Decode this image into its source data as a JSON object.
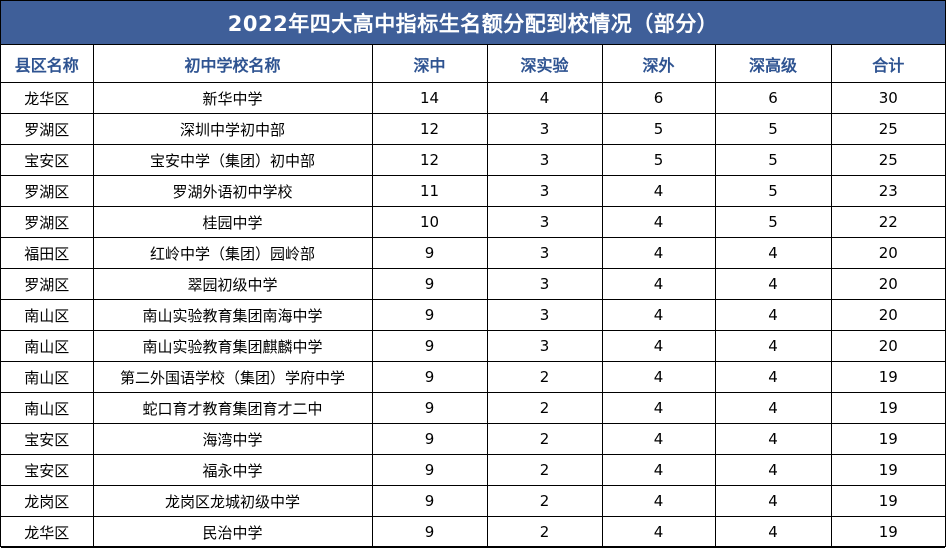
{
  "title": "2022年四大高中指标生名额分配到校情况（部分）",
  "headers": [
    "县区名称",
    "初中学校名称",
    "深中",
    "深实验",
    "深外",
    "深高级",
    "合计"
  ],
  "rows": [
    [
      "龙华区",
      "新华中学",
      "14",
      "4",
      "6",
      "6",
      "30"
    ],
    [
      "罗湖区",
      "深圳中学初中部",
      "12",
      "3",
      "5",
      "5",
      "25"
    ],
    [
      "宝安区",
      "宝安中学（集团）初中部",
      "12",
      "3",
      "5",
      "5",
      "25"
    ],
    [
      "罗湖区",
      "罗湖外语初中学校",
      "11",
      "3",
      "4",
      "5",
      "23"
    ],
    [
      "罗湖区",
      "桂园中学",
      "10",
      "3",
      "4",
      "5",
      "22"
    ],
    [
      "福田区",
      "红岭中学（集团）园岭部",
      "9",
      "3",
      "4",
      "4",
      "20"
    ],
    [
      "罗湖区",
      "翠园初级中学",
      "9",
      "3",
      "4",
      "4",
      "20"
    ],
    [
      "南山区",
      "南山实验教育集团南海中学",
      "9",
      "3",
      "4",
      "4",
      "20"
    ],
    [
      "南山区",
      "南山实验教育集团麒麟中学",
      "9",
      "3",
      "4",
      "4",
      "20"
    ],
    [
      "南山区",
      "第二外国语学校（集团）学府中学",
      "9",
      "2",
      "4",
      "4",
      "19"
    ],
    [
      "南山区",
      "蛇口育才教育集团育才二中",
      "9",
      "2",
      "4",
      "4",
      "19"
    ],
    [
      "宝安区",
      "海湾中学",
      "9",
      "2",
      "4",
      "4",
      "19"
    ],
    [
      "宝安区",
      "福永中学",
      "9",
      "2",
      "4",
      "4",
      "19"
    ],
    [
      "龙岗区",
      "龙岗区龙城初级中学",
      "9",
      "2",
      "4",
      "4",
      "19"
    ],
    [
      "龙华区",
      "民治中学",
      "9",
      "2",
      "4",
      "4",
      "19"
    ]
  ]
}
